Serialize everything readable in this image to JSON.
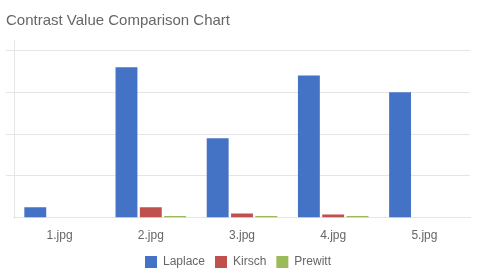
{
  "chart_data": {
    "type": "bar",
    "title": "Contrast Value Comparison Chart",
    "categories": [
      "1.jpg",
      "2.jpg",
      "3.jpg",
      "4.jpg",
      "5.jpg"
    ],
    "series": [
      {
        "name": "Laplace",
        "color": "#4472C4",
        "values": [
          0.05,
          0.72,
          0.38,
          0.68,
          0.6
        ]
      },
      {
        "name": "Kirsch",
        "color": "#C0504D",
        "values": [
          0.0,
          0.05,
          0.02,
          0.015,
          0.0
        ]
      },
      {
        "name": "Prewitt",
        "color": "#9BBB59",
        "values": [
          0.0,
          0.008,
          0.008,
          0.008,
          0.0
        ]
      }
    ],
    "ylim": [
      0,
      0.85
    ],
    "yticks": [
      0.2,
      0.4,
      0.6,
      0.8
    ],
    "grid": true,
    "legend": "bottom",
    "tick_labels": "x"
  }
}
